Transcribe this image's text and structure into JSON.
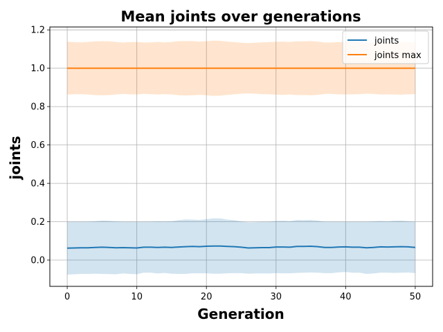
{
  "chart_data": {
    "type": "line",
    "title": "Mean joints over generations",
    "xlabel": "Generation",
    "ylabel": "joints",
    "xlim": [
      -2.5,
      52.5
    ],
    "ylim": [
      -0.137,
      1.215
    ],
    "x_ticks": [
      0,
      10,
      20,
      30,
      40,
      50
    ],
    "x_tick_labels": [
      "0",
      "10",
      "20",
      "30",
      "40",
      "50"
    ],
    "y_ticks": [
      0.0,
      0.2,
      0.4,
      0.6,
      0.8,
      1.0,
      1.2
    ],
    "y_tick_labels": [
      "0.0",
      "0.2",
      "0.4",
      "0.6",
      "0.8",
      "1.0",
      "1.2"
    ],
    "grid": true,
    "legend_position": "top-right",
    "x": [
      0,
      1,
      2,
      3,
      4,
      5,
      6,
      7,
      8,
      9,
      10,
      11,
      12,
      13,
      14,
      15,
      16,
      17,
      18,
      19,
      20,
      21,
      22,
      23,
      24,
      25,
      26,
      27,
      28,
      29,
      30,
      31,
      32,
      33,
      34,
      35,
      36,
      37,
      38,
      39,
      40,
      41,
      42,
      43,
      44,
      45,
      46,
      47,
      48,
      49,
      50
    ],
    "series": [
      {
        "name": "joints",
        "color": "#1f77b4",
        "band_color": "#1f77b4",
        "band_opacity": 0.2,
        "values": [
          0.062,
          0.063,
          0.064,
          0.064,
          0.066,
          0.067,
          0.066,
          0.064,
          0.065,
          0.064,
          0.063,
          0.067,
          0.067,
          0.066,
          0.067,
          0.066,
          0.068,
          0.07,
          0.071,
          0.07,
          0.072,
          0.073,
          0.073,
          0.071,
          0.07,
          0.067,
          0.063,
          0.064,
          0.065,
          0.065,
          0.068,
          0.068,
          0.067,
          0.071,
          0.071,
          0.072,
          0.07,
          0.066,
          0.066,
          0.068,
          0.069,
          0.067,
          0.067,
          0.064,
          0.066,
          0.069,
          0.068,
          0.069,
          0.07,
          0.069,
          0.066
        ],
        "upper": [
          0.2,
          0.2,
          0.2,
          0.2,
          0.203,
          0.206,
          0.205,
          0.202,
          0.2,
          0.2,
          0.2,
          0.2,
          0.2,
          0.202,
          0.201,
          0.203,
          0.208,
          0.212,
          0.211,
          0.209,
          0.213,
          0.217,
          0.217,
          0.211,
          0.208,
          0.202,
          0.197,
          0.198,
          0.2,
          0.2,
          0.204,
          0.205,
          0.203,
          0.209,
          0.208,
          0.209,
          0.206,
          0.2,
          0.2,
          0.2,
          0.2,
          0.2,
          0.2,
          0.2,
          0.202,
          0.204,
          0.202,
          0.205,
          0.206,
          0.203,
          0.2
        ],
        "lower": [
          -0.076,
          -0.074,
          -0.072,
          -0.072,
          -0.071,
          -0.072,
          -0.073,
          -0.074,
          -0.07,
          -0.072,
          -0.074,
          -0.066,
          -0.066,
          -0.07,
          -0.067,
          -0.071,
          -0.072,
          -0.072,
          -0.069,
          -0.069,
          -0.069,
          -0.071,
          -0.071,
          -0.069,
          -0.068,
          -0.068,
          -0.071,
          -0.07,
          -0.07,
          -0.07,
          -0.068,
          -0.069,
          -0.069,
          -0.067,
          -0.066,
          -0.065,
          -0.066,
          -0.068,
          -0.068,
          -0.064,
          -0.062,
          -0.066,
          -0.066,
          -0.072,
          -0.07,
          -0.066,
          -0.066,
          -0.067,
          -0.066,
          -0.065,
          -0.068
        ]
      },
      {
        "name": "joints max",
        "color": "#ff7f0e",
        "band_color": "#ff7f0e",
        "band_opacity": 0.2,
        "values": [
          1.0,
          1.0,
          1.0,
          1.0,
          1.0,
          1.0,
          1.0,
          1.0,
          1.0,
          1.0,
          1.0,
          1.0,
          1.0,
          1.0,
          1.0,
          1.0,
          1.0,
          1.0,
          1.0,
          1.0,
          1.0,
          1.0,
          1.0,
          1.0,
          1.0,
          1.0,
          1.0,
          1.0,
          1.0,
          1.0,
          1.0,
          1.0,
          1.0,
          1.0,
          1.0,
          1.0,
          1.0,
          1.0,
          1.0,
          1.0,
          1.0,
          1.0,
          1.0,
          1.0,
          1.0,
          1.0,
          1.0,
          1.0,
          1.0,
          1.0,
          1.0
        ],
        "upper": [
          1.138,
          1.136,
          1.135,
          1.137,
          1.14,
          1.141,
          1.14,
          1.137,
          1.134,
          1.136,
          1.137,
          1.134,
          1.135,
          1.137,
          1.135,
          1.137,
          1.141,
          1.142,
          1.141,
          1.139,
          1.141,
          1.144,
          1.143,
          1.139,
          1.136,
          1.133,
          1.131,
          1.133,
          1.135,
          1.136,
          1.138,
          1.139,
          1.137,
          1.14,
          1.14,
          1.141,
          1.139,
          1.134,
          1.134,
          1.136,
          1.137,
          1.136,
          1.135,
          1.133,
          1.134,
          1.137,
          1.136,
          1.137,
          1.138,
          1.136,
          1.135
        ],
        "lower": [
          0.863,
          0.864,
          0.865,
          0.863,
          0.86,
          0.859,
          0.86,
          0.863,
          0.866,
          0.864,
          0.863,
          0.866,
          0.865,
          0.863,
          0.865,
          0.863,
          0.859,
          0.858,
          0.859,
          0.861,
          0.859,
          0.856,
          0.857,
          0.861,
          0.864,
          0.867,
          0.869,
          0.867,
          0.865,
          0.864,
          0.862,
          0.861,
          0.863,
          0.86,
          0.86,
          0.859,
          0.861,
          0.866,
          0.866,
          0.864,
          0.863,
          0.864,
          0.865,
          0.867,
          0.866,
          0.863,
          0.864,
          0.863,
          0.862,
          0.864,
          0.865
        ]
      }
    ]
  }
}
